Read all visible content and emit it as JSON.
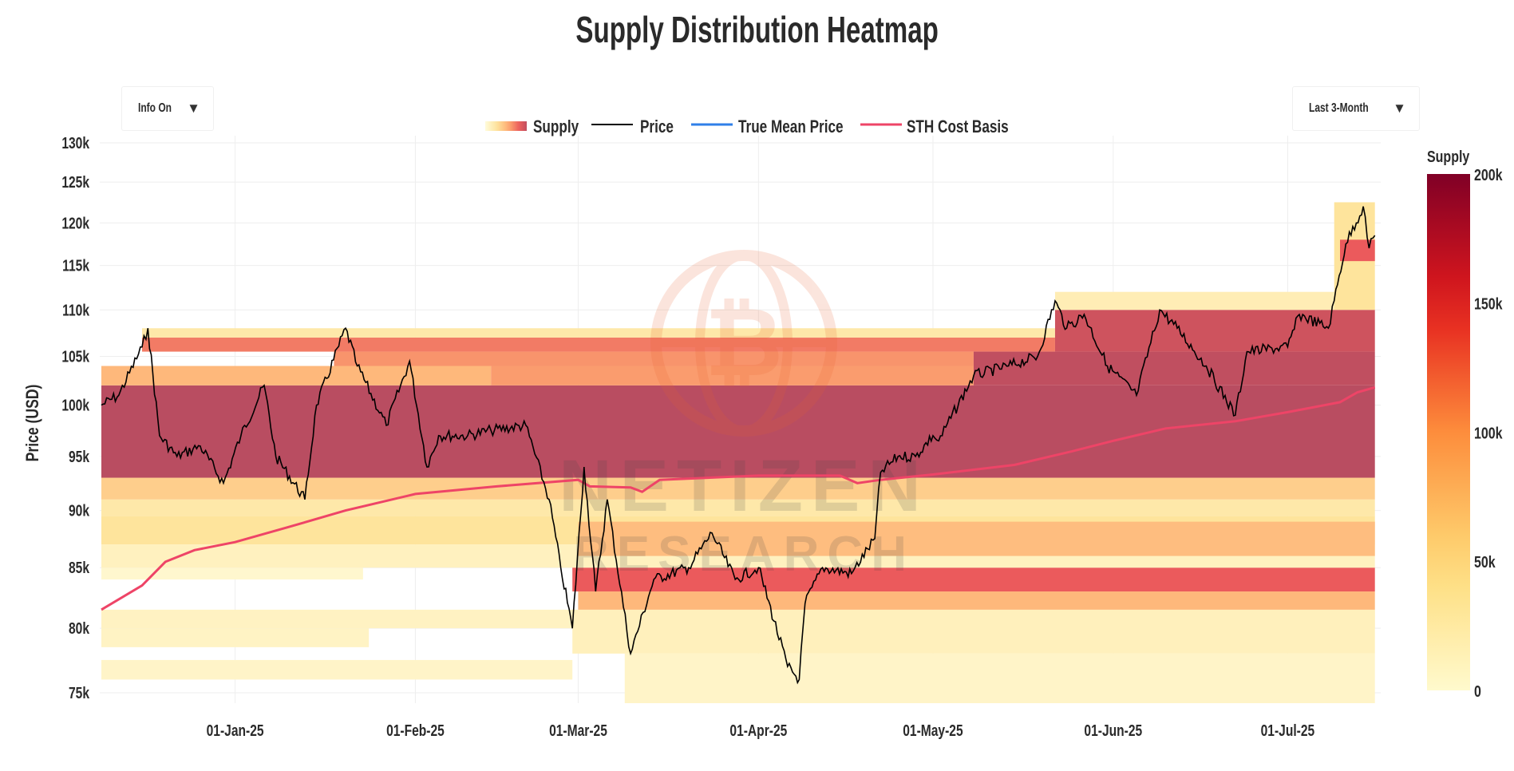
{
  "title": "Supply Distribution Heatmap",
  "controls": {
    "info_dropdown": {
      "label": "Info On",
      "icon": "triangle-down-icon"
    },
    "range_dropdown": {
      "label": "Last 3-Month",
      "icon": "triangle-down-icon"
    }
  },
  "watermark": {
    "line1": "NETIZEN",
    "line2": "RESEARCH",
    "logo": "bitcoin-globe"
  },
  "colors": {
    "price": "#000000",
    "true_mean": "#2f7fe8",
    "sth": "#ee4467",
    "grid": "#eeeeee"
  },
  "chart_data": {
    "type": "heatmap",
    "title": "Supply Distribution Heatmap",
    "xlabel": "",
    "ylabel": "Price (USD)",
    "yscale": "log",
    "ylim": [
      75,
      130
    ],
    "xlim": [
      "2024-12-09",
      "2025-07-17"
    ],
    "grid": true,
    "legend_position": "top-center",
    "legend": [
      "Supply",
      "Price",
      "True Mean Price",
      "STH Cost Basis"
    ],
    "y_ticks": [
      {
        "v": 75,
        "label": "75k"
      },
      {
        "v": 80,
        "label": "80k"
      },
      {
        "v": 85,
        "label": "85k"
      },
      {
        "v": 90,
        "label": "90k"
      },
      {
        "v": 95,
        "label": "95k"
      },
      {
        "v": 100,
        "label": "100k"
      },
      {
        "v": 105,
        "label": "105k"
      },
      {
        "v": 110,
        "label": "110k"
      },
      {
        "v": 115,
        "label": "115k"
      },
      {
        "v": 120,
        "label": "120k"
      },
      {
        "v": 125,
        "label": "125k"
      },
      {
        "v": 130,
        "label": "130k"
      }
    ],
    "x_ticks": [
      {
        "d": "2025-01-01",
        "label": "01-Jan-25"
      },
      {
        "d": "2025-02-01",
        "label": "01-Feb-25"
      },
      {
        "d": "2025-03-01",
        "label": "01-Mar-25"
      },
      {
        "d": "2025-04-01",
        "label": "01-Apr-25"
      },
      {
        "d": "2025-05-01",
        "label": "01-May-25"
      },
      {
        "d": "2025-06-01",
        "label": "01-Jun-25"
      },
      {
        "d": "2025-07-01",
        "label": "01-Jul-25"
      }
    ],
    "colorbar": {
      "title": "Supply",
      "range": [
        0,
        200
      ],
      "ticks": [
        {
          "v": 0,
          "label": "0"
        },
        {
          "v": 50,
          "label": "50k"
        },
        {
          "v": 100,
          "label": "100k"
        },
        {
          "v": 150,
          "label": "150k"
        },
        {
          "v": 200,
          "label": "200k"
        }
      ]
    },
    "supply_bands_k": [
      {
        "lo": 76,
        "hi": 77.5,
        "from": "2024-12-09",
        "to": "2025-02-28",
        "v": 15
      },
      {
        "lo": 74,
        "hi": 78,
        "from": "2025-03-09",
        "to": "2025-07-16",
        "v": 15
      },
      {
        "lo": 78.5,
        "hi": 80,
        "from": "2024-12-09",
        "to": "2025-01-24",
        "v": 18
      },
      {
        "lo": 80,
        "hi": 81.5,
        "from": "2024-12-09",
        "to": "2025-07-16",
        "v": 20
      },
      {
        "lo": 78,
        "hi": 81.5,
        "from": "2025-02-28",
        "to": "2025-07-16",
        "v": 25
      },
      {
        "lo": 84,
        "hi": 85,
        "from": "2024-12-09",
        "to": "2025-01-23",
        "v": 10
      },
      {
        "lo": 81.5,
        "hi": 83,
        "from": "2025-03-01",
        "to": "2025-07-16",
        "v": 90
      },
      {
        "lo": 83,
        "hi": 85,
        "from": "2025-02-28",
        "to": "2025-07-16",
        "v": 150
      },
      {
        "lo": 85,
        "hi": 87,
        "from": "2024-12-09",
        "to": "2025-07-16",
        "v": 22
      },
      {
        "lo": 87,
        "hi": 89.5,
        "from": "2024-12-09",
        "to": "2025-07-16",
        "v": 50
      },
      {
        "lo": 86,
        "hi": 89,
        "from": "2025-03-01",
        "to": "2025-07-16",
        "v": 85
      },
      {
        "lo": 89.5,
        "hi": 91,
        "from": "2024-12-09",
        "to": "2025-07-16",
        "v": 40
      },
      {
        "lo": 91,
        "hi": 93,
        "from": "2024-12-09",
        "to": "2025-07-16",
        "v": 70
      },
      {
        "lo": 93,
        "hi": 102,
        "from": "2024-12-09",
        "to": "2025-07-16",
        "v": 185
      },
      {
        "lo": 102,
        "hi": 104,
        "from": "2024-12-09",
        "to": "2025-02-14",
        "v": 90
      },
      {
        "lo": 102,
        "hi": 104,
        "from": "2025-02-14",
        "to": "2025-05-08",
        "v": 110
      },
      {
        "lo": 104,
        "hi": 105.5,
        "from": "2025-01-18",
        "to": "2025-05-08",
        "v": 115
      },
      {
        "lo": 105.5,
        "hi": 107,
        "from": "2024-12-16",
        "to": "2025-05-22",
        "v": 130
      },
      {
        "lo": 107,
        "hi": 108,
        "from": "2024-12-16",
        "to": "2025-05-22",
        "v": 40
      },
      {
        "lo": 102,
        "hi": 105.5,
        "from": "2025-05-08",
        "to": "2025-07-16",
        "v": 180
      },
      {
        "lo": 105.5,
        "hi": 110,
        "from": "2025-05-22",
        "to": "2025-07-16",
        "v": 170
      },
      {
        "lo": 110,
        "hi": 112,
        "from": "2025-05-22",
        "to": "2025-07-09",
        "v": 30
      },
      {
        "lo": 110,
        "hi": 122.5,
        "from": "2025-07-09",
        "to": "2025-07-16",
        "v": 50
      },
      {
        "lo": 115.5,
        "hi": 118,
        "from": "2025-07-10",
        "to": "2025-07-16",
        "v": 150
      }
    ],
    "series": [
      {
        "name": "Price",
        "unit": "k USD",
        "points": [
          [
            "2024-12-09",
            100
          ],
          [
            "2024-12-12",
            101
          ],
          [
            "2024-12-16",
            106
          ],
          [
            "2024-12-17",
            108
          ],
          [
            "2024-12-19",
            97
          ],
          [
            "2024-12-22",
            95
          ],
          [
            "2024-12-26",
            96
          ],
          [
            "2024-12-30",
            92.5
          ],
          [
            "2025-01-02",
            97
          ],
          [
            "2025-01-06",
            102
          ],
          [
            "2025-01-08",
            95
          ],
          [
            "2025-01-13",
            91
          ],
          [
            "2025-01-15",
            100
          ],
          [
            "2025-01-20",
            108
          ],
          [
            "2025-01-22",
            104
          ],
          [
            "2025-01-27",
            98
          ],
          [
            "2025-01-31",
            104.5
          ],
          [
            "2025-02-03",
            94
          ],
          [
            "2025-02-05",
            97
          ],
          [
            "2025-02-10",
            97
          ],
          [
            "2025-02-14",
            97.5
          ],
          [
            "2025-02-20",
            98
          ],
          [
            "2025-02-24",
            91
          ],
          [
            "2025-02-26",
            85
          ],
          [
            "2025-02-28",
            80
          ],
          [
            "2025-03-02",
            94
          ],
          [
            "2025-03-04",
            83
          ],
          [
            "2025-03-06",
            91
          ],
          [
            "2025-03-10",
            78
          ],
          [
            "2025-03-14",
            84
          ],
          [
            "2025-03-20",
            85
          ],
          [
            "2025-03-24",
            88
          ],
          [
            "2025-03-28",
            84
          ],
          [
            "2025-04-01",
            85
          ],
          [
            "2025-04-06",
            77
          ],
          [
            "2025-04-08",
            76
          ],
          [
            "2025-04-09",
            82
          ],
          [
            "2025-04-12",
            85
          ],
          [
            "2025-04-17",
            84.5
          ],
          [
            "2025-04-21",
            87.5
          ],
          [
            "2025-04-22",
            93.5
          ],
          [
            "2025-04-25",
            95
          ],
          [
            "2025-04-28",
            95
          ],
          [
            "2025-05-01",
            97
          ],
          [
            "2025-05-02",
            96.5
          ],
          [
            "2025-05-08",
            103
          ],
          [
            "2025-05-14",
            104
          ],
          [
            "2025-05-19",
            105
          ],
          [
            "2025-05-22",
            111
          ],
          [
            "2025-05-24",
            108
          ],
          [
            "2025-05-27",
            109.5
          ],
          [
            "2025-05-31",
            104
          ],
          [
            "2025-06-05",
            101
          ],
          [
            "2025-06-09",
            110
          ],
          [
            "2025-06-12",
            108
          ],
          [
            "2025-06-17",
            104
          ],
          [
            "2025-06-22",
            99
          ],
          [
            "2025-06-24",
            105.5
          ],
          [
            "2025-07-01",
            106
          ],
          [
            "2025-07-03",
            109.5
          ],
          [
            "2025-07-08",
            108
          ],
          [
            "2025-07-09",
            111
          ],
          [
            "2025-07-11",
            117.5
          ],
          [
            "2025-07-14",
            122
          ],
          [
            "2025-07-15",
            117
          ],
          [
            "2025-07-16",
            118.5
          ]
        ]
      },
      {
        "name": "True Mean Price",
        "unit": "k USD",
        "points": []
      },
      {
        "name": "STH Cost Basis",
        "unit": "k USD",
        "points": [
          [
            "2024-12-09",
            81.5
          ],
          [
            "2024-12-16",
            83.5
          ],
          [
            "2024-12-20",
            85.5
          ],
          [
            "2024-12-25",
            86.5
          ],
          [
            "2025-01-01",
            87.2
          ],
          [
            "2025-01-10",
            88.5
          ],
          [
            "2025-01-20",
            90
          ],
          [
            "2025-02-01",
            91.5
          ],
          [
            "2025-02-15",
            92.2
          ],
          [
            "2025-03-01",
            92.8
          ],
          [
            "2025-03-03",
            92.2
          ],
          [
            "2025-03-10",
            92.1
          ],
          [
            "2025-03-12",
            91.7
          ],
          [
            "2025-03-15",
            92.8
          ],
          [
            "2025-04-01",
            93.2
          ],
          [
            "2025-04-15",
            93.2
          ],
          [
            "2025-04-18",
            92.5
          ],
          [
            "2025-04-22",
            92.8
          ],
          [
            "2025-05-01",
            93.3
          ],
          [
            "2025-05-15",
            94.2
          ],
          [
            "2025-05-25",
            95.5
          ],
          [
            "2025-06-01",
            96.5
          ],
          [
            "2025-06-10",
            97.7
          ],
          [
            "2025-06-22",
            98.4
          ],
          [
            "2025-07-01",
            99.3
          ],
          [
            "2025-07-10",
            100.3
          ],
          [
            "2025-07-13",
            101.3
          ],
          [
            "2025-07-16",
            101.8
          ]
        ]
      }
    ]
  }
}
